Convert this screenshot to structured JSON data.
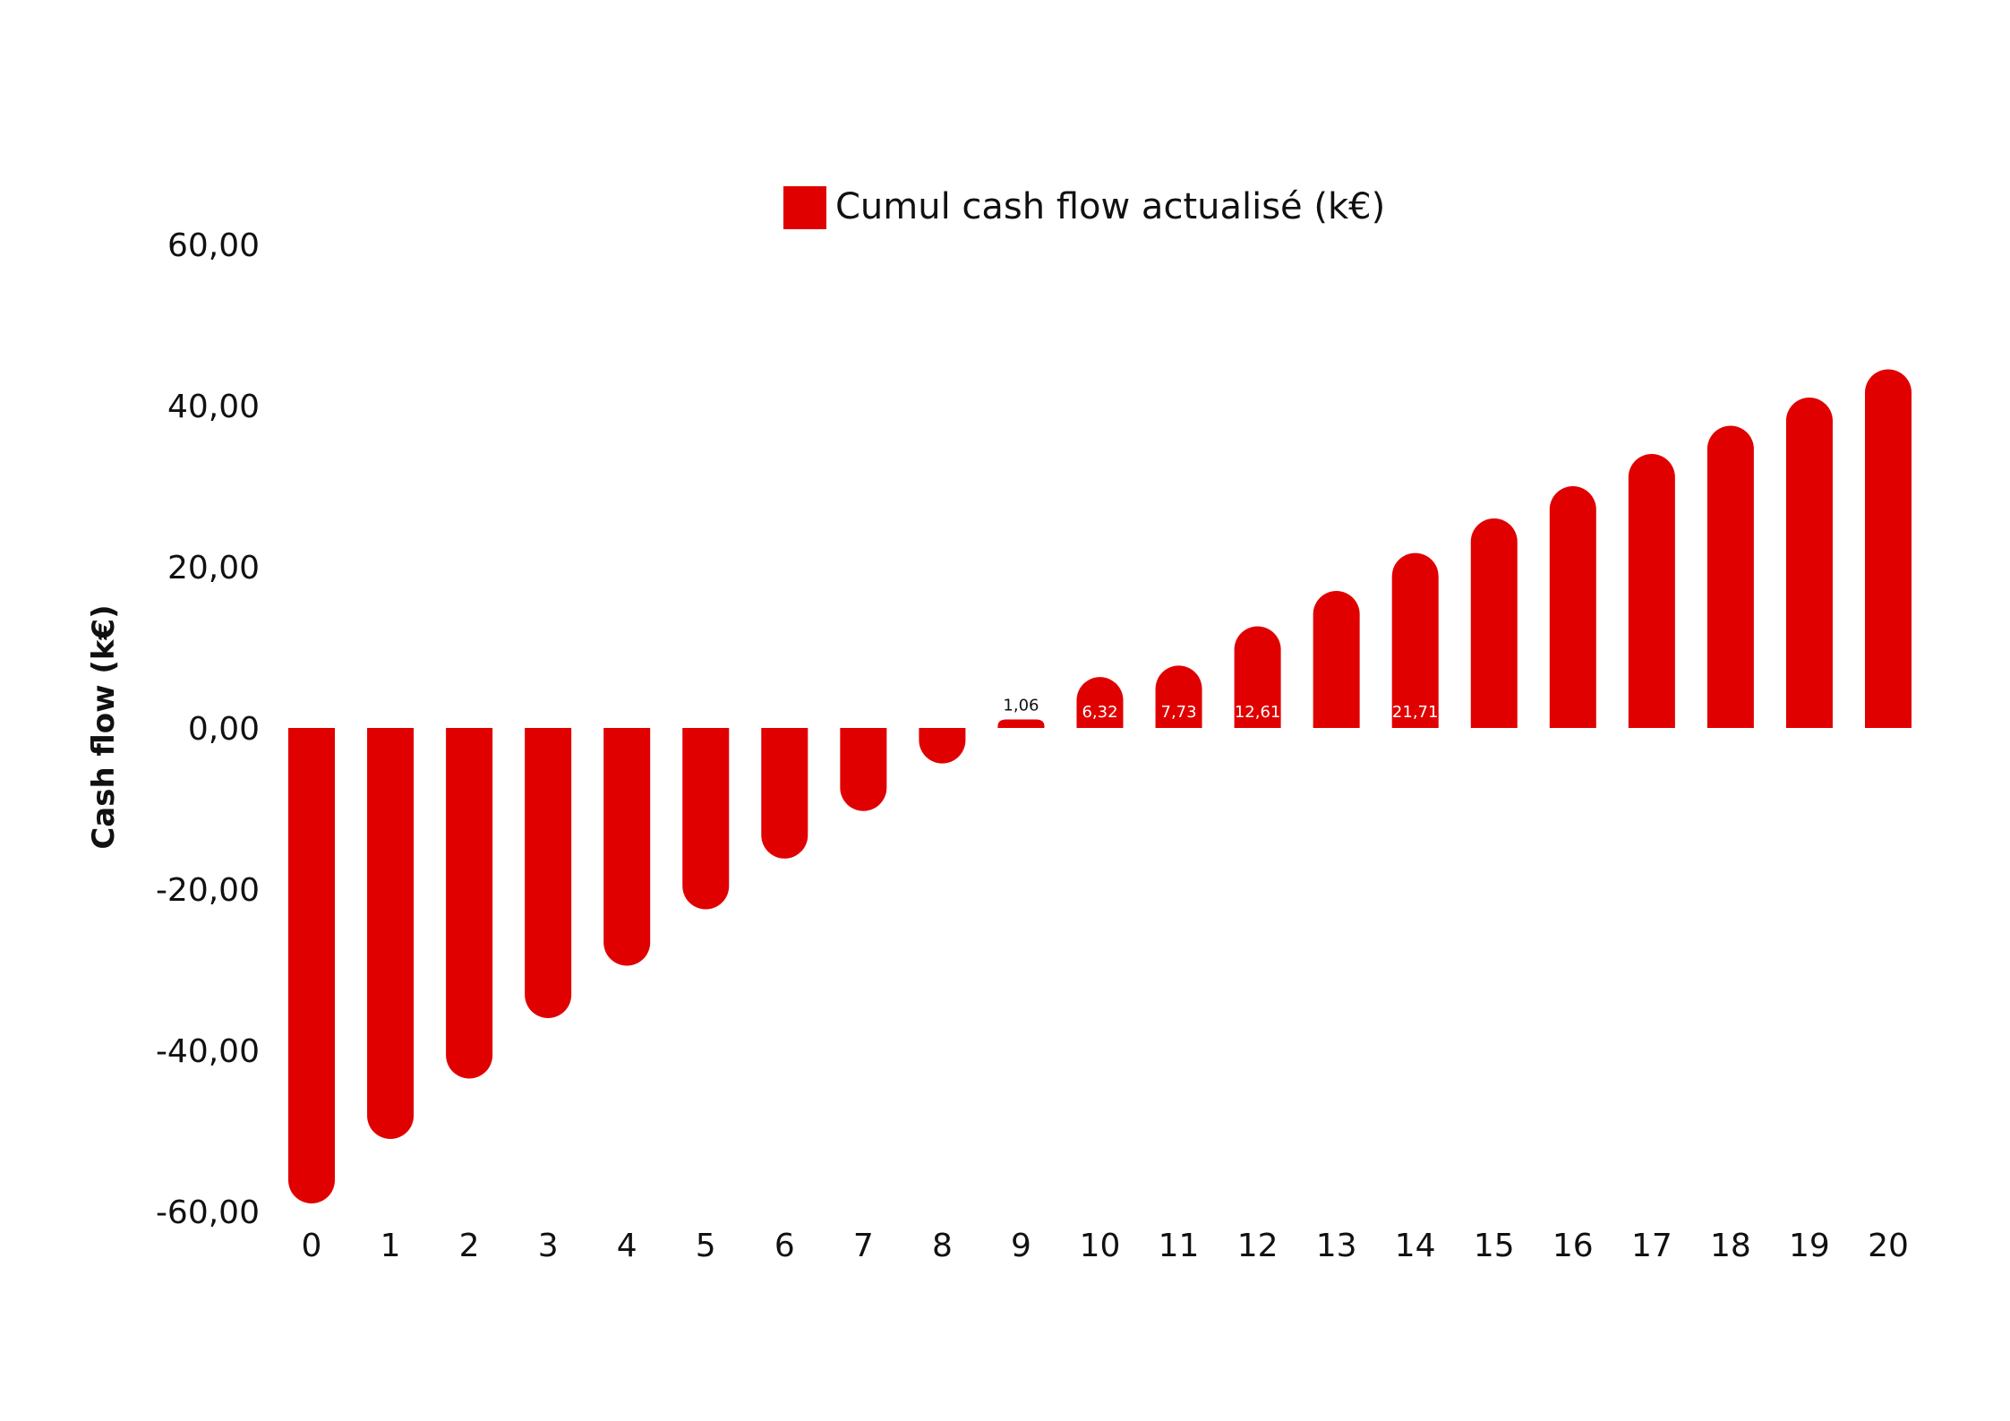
{
  "chart_data": {
    "type": "bar",
    "xlabel": "",
    "ylabel": "Cash flow (k€)",
    "ylim": [
      -60,
      60
    ],
    "yticks": [
      "60,00",
      "40,00",
      "20,00",
      "0,00",
      "-20,00",
      "-40,00",
      "-60,00"
    ],
    "categories": [
      "0",
      "1",
      "2",
      "3",
      "4",
      "5",
      "6",
      "7",
      "8",
      "9",
      "10",
      "11",
      "12",
      "13",
      "14",
      "15",
      "16",
      "17",
      "18",
      "19",
      "20"
    ],
    "series": [
      {
        "name": "Cumul cash flow actualisé (k€)",
        "color": "#e00000",
        "values": [
          -59,
          -51,
          -43.5,
          -36,
          -29.5,
          -22.5,
          -16.2,
          -10.3,
          -4.4,
          1.06,
          6.32,
          7.73,
          12.61,
          17,
          21.71,
          26,
          30,
          34,
          37.5,
          41,
          44.5
        ]
      }
    ],
    "data_labels": [
      {
        "index": 9,
        "text": "1,06"
      },
      {
        "index": 10,
        "text": "6,32"
      },
      {
        "index": 11,
        "text": "7,73"
      },
      {
        "index": 12,
        "text": "12,61"
      },
      {
        "index": 14,
        "text": "21,71"
      }
    ],
    "legend_position": "top-center",
    "grid": false
  }
}
